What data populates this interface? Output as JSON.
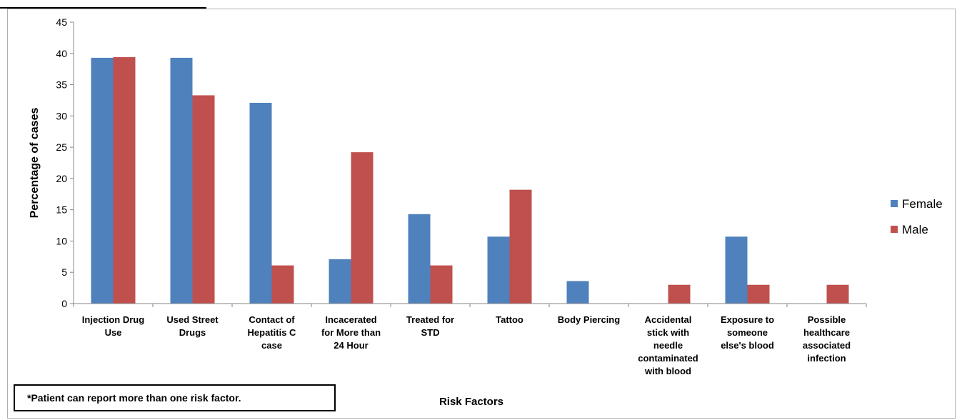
{
  "chart_data": {
    "type": "bar",
    "title": "",
    "xlabel": "Risk Factors",
    "ylabel": "Percentage of cases",
    "ylim": [
      0,
      45
    ],
    "yticks": [
      0,
      5,
      10,
      15,
      20,
      25,
      30,
      35,
      40,
      45
    ],
    "categories": [
      [
        "Injection Drug",
        "Use"
      ],
      [
        "Used Street",
        "Drugs"
      ],
      [
        "Contact of",
        "Hepatitis C",
        "case"
      ],
      [
        "Incacerated",
        "for More than",
        "24 Hour"
      ],
      [
        "Treated for",
        "STD"
      ],
      [
        "Tattoo"
      ],
      [
        "Body Piercing"
      ],
      [
        "Accidental",
        "stick with",
        "needle",
        "contaminated",
        "with blood"
      ],
      [
        "Exposure to",
        "someone",
        "else's blood"
      ],
      [
        "Possible",
        "healthcare",
        "associated",
        "infection"
      ]
    ],
    "series": [
      {
        "name": "Female",
        "color": "#4F81BD",
        "values": [
          39.3,
          39.3,
          32.1,
          7.1,
          14.3,
          10.7,
          3.6,
          0,
          10.7,
          0
        ]
      },
      {
        "name": "Male",
        "color": "#C0504D",
        "values": [
          39.4,
          33.3,
          6.1,
          24.2,
          6.1,
          18.2,
          0,
          3.0,
          3.0,
          3.0
        ]
      }
    ],
    "legend": "right",
    "grid": false
  },
  "note": "*Patient can report more than one risk factor."
}
